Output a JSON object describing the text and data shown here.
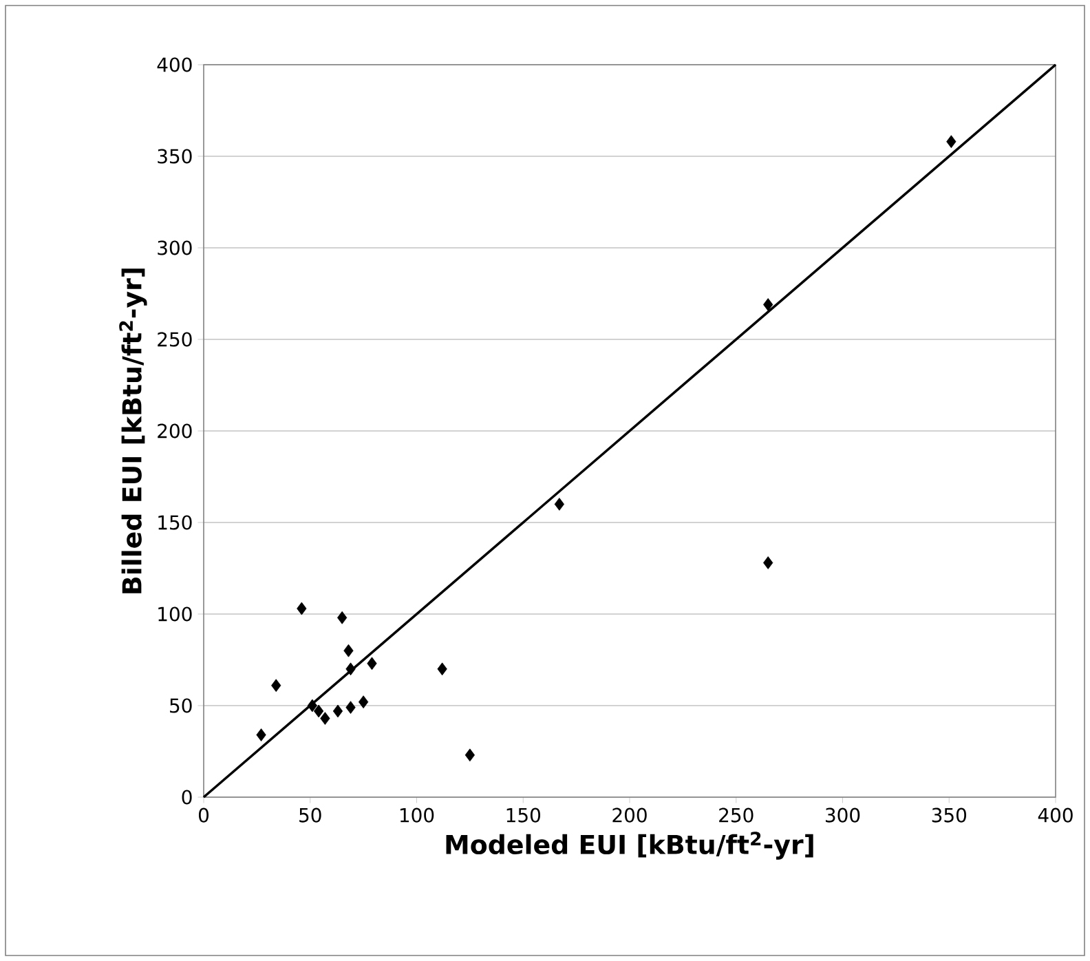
{
  "chart_data": {
    "type": "scatter",
    "xlabel": "Modeled EUI [kBtu/ft$^{2}$-yr]",
    "ylabel": "Billed EUI [kBtu/ft$^{2}$-yr]",
    "xlim": [
      0,
      400
    ],
    "ylim": [
      0,
      400
    ],
    "xticks": [
      0,
      50,
      100,
      150,
      200,
      250,
      300,
      350,
      400
    ],
    "yticks": [
      0,
      50,
      100,
      150,
      200,
      250,
      300,
      350,
      400
    ],
    "grid": "y",
    "series": [
      {
        "marker": "diamond",
        "color": "#000000",
        "x": [
          27,
          34,
          46,
          65,
          68,
          69,
          79,
          112,
          51,
          54,
          57,
          63,
          69,
          75,
          125,
          167,
          265,
          265,
          351
        ],
        "values": [
          34,
          61,
          103,
          98,
          80,
          70,
          73,
          70,
          50,
          47,
          43,
          47,
          49,
          52,
          23,
          160,
          128,
          269,
          358
        ]
      },
      {
        "type": "line",
        "color": "#000000",
        "line_style": "solid",
        "x": [
          0,
          400
        ],
        "values": [
          0,
          400
        ]
      }
    ]
  }
}
